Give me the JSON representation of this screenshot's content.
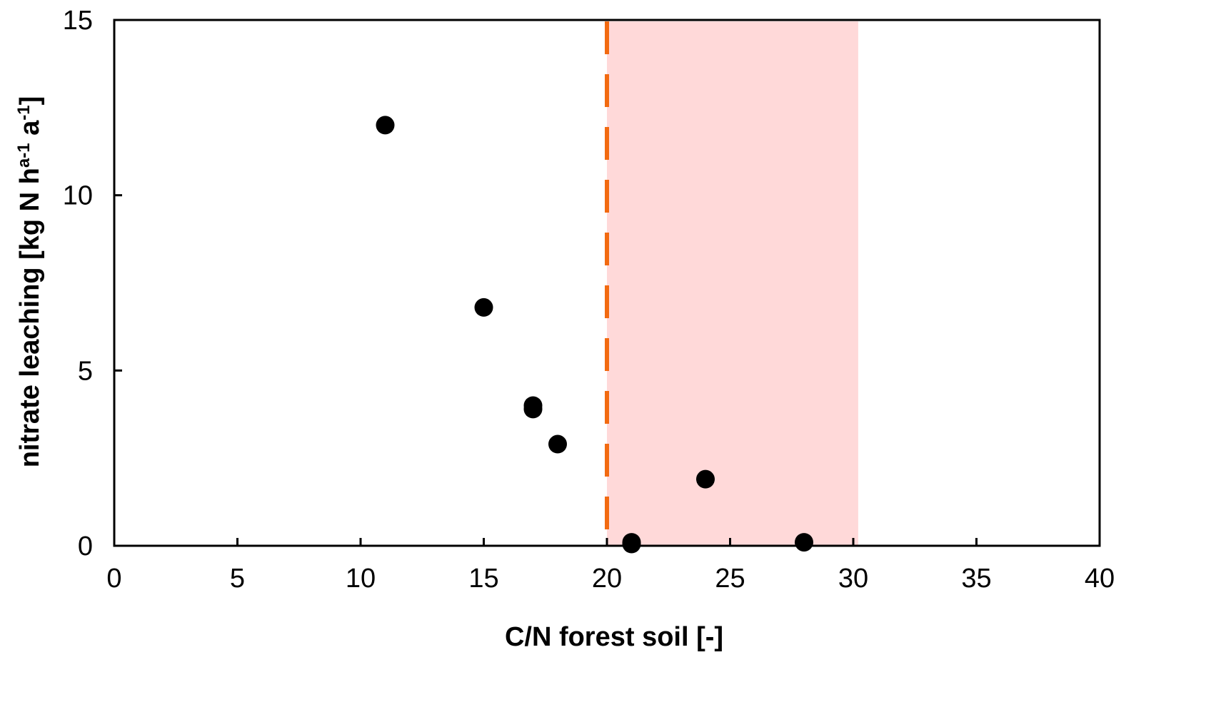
{
  "chart_data": {
    "type": "scatter",
    "xlabel": "C/N forest soil [-]",
    "ylabel": {
      "parts": [
        {
          "text": "nitrate leaching [kg N h",
          "sup": false
        },
        {
          "text": "a-1",
          "sup": true
        },
        {
          "text": " a",
          "sup": false
        },
        {
          "text": "-1",
          "sup": true
        },
        {
          "text": "]",
          "sup": false
        }
      ]
    },
    "xlim": [
      0,
      40
    ],
    "ylim": [
      0,
      15
    ],
    "x_ticks": [
      0,
      5,
      10,
      15,
      20,
      25,
      30,
      35,
      40
    ],
    "y_ticks": [
      0,
      5,
      10,
      15
    ],
    "x_tick_labels": [
      "0",
      "5",
      "10",
      "15",
      "20",
      "25",
      "30",
      "35",
      "40"
    ],
    "y_tick_labels": [
      "0",
      "5",
      "10",
      "15"
    ],
    "grid": false,
    "series": [
      {
        "points": [
          {
            "x": 11,
            "y": 12.0
          },
          {
            "x": 15,
            "y": 6.8
          },
          {
            "x": 17,
            "y": 4.0
          },
          {
            "x": 17,
            "y": 3.9
          },
          {
            "x": 18,
            "y": 2.9
          },
          {
            "x": 21,
            "y": 0.1
          },
          {
            "x": 21,
            "y": 0.05
          },
          {
            "x": 24,
            "y": 1.9
          },
          {
            "x": 28,
            "y": 0.1
          }
        ],
        "color": "#000000"
      }
    ],
    "shaded_region": {
      "x_from": 20,
      "x_to": 30.2,
      "color": "#ffd9d9"
    },
    "threshold_line": {
      "x": 20,
      "color": "#f26a10",
      "style": "dashed"
    }
  }
}
